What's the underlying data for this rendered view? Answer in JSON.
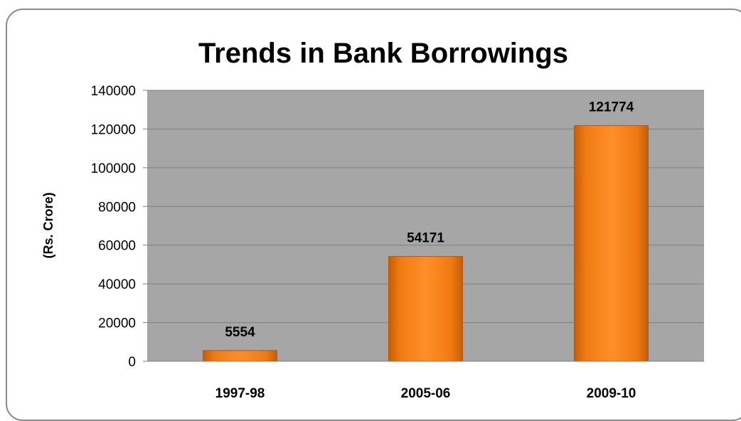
{
  "chart_data": {
    "type": "bar",
    "title": "Trends in Bank Borrowings",
    "xlabel": "",
    "ylabel": "(Rs. Crore)",
    "categories": [
      "1997-98",
      "2005-06",
      "2009-10"
    ],
    "values": [
      5554,
      54171,
      121774
    ],
    "data_labels": [
      "5554",
      "54171",
      "121774"
    ],
    "ylim": [
      0,
      140000
    ],
    "yticks": [
      0,
      20000,
      40000,
      60000,
      80000,
      100000,
      120000,
      140000
    ],
    "ytick_labels": [
      "0",
      "20000",
      "40000",
      "60000",
      "80000",
      "100000",
      "120000",
      "140000"
    ],
    "grid": true,
    "legend": "none",
    "colors": {
      "bar": "#f07a12",
      "bar_dark": "#b85608",
      "plot_background": "#a6a6a6",
      "gridline": "#7f7f7f"
    }
  }
}
